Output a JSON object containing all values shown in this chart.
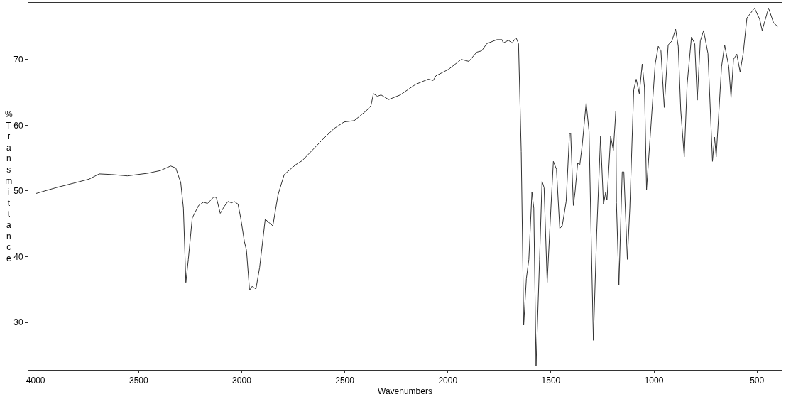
{
  "chart_data": {
    "type": "line",
    "xlabel": "Wavenumbers",
    "ylabel": "%Transmittance",
    "xlim": [
      4035,
      380
    ],
    "ylim": [
      22.8,
      78.6
    ],
    "xticks": [
      4000,
      3500,
      3000,
      2500,
      2000,
      1500,
      1000,
      500
    ],
    "yticks": [
      30,
      40,
      50,
      60,
      70
    ],
    "series": [
      {
        "color": "#333333",
        "x": [
          4000,
          3901,
          3802,
          3741,
          3691,
          3629,
          3555,
          3456,
          3395,
          3345,
          3320,
          3296,
          3283,
          3271,
          3259,
          3240,
          3209,
          3185,
          3166,
          3135,
          3123,
          3104,
          3086,
          3067,
          3049,
          3036,
          3018,
          3005,
          2987,
          2977,
          2962,
          2950,
          2931,
          2913,
          2886,
          2849,
          2824,
          2794,
          2738,
          2707,
          2676,
          2602,
          2552,
          2503,
          2454,
          2392,
          2373,
          2361,
          2342,
          2324,
          2287,
          2231,
          2157,
          2095,
          2071,
          2058,
          1996,
          1935,
          1898,
          1860,
          1836,
          1811,
          1762,
          1737,
          1731,
          1706,
          1688,
          1669,
          1657,
          1644,
          1632,
          1619,
          1607,
          1592,
          1583,
          1572,
          1555,
          1543,
          1533,
          1518,
          1500,
          1488,
          1473,
          1457,
          1445,
          1426,
          1410,
          1404,
          1391,
          1383,
          1370,
          1360,
          1348,
          1329,
          1315,
          1305,
          1294,
          1278,
          1259,
          1245,
          1234,
          1228,
          1210,
          1197,
          1185,
          1182,
          1170,
          1154,
          1146,
          1129,
          1117,
          1098,
          1086,
          1071,
          1057,
          1046,
          1036,
          1018,
          994,
          979,
          966,
          950,
          931,
          913,
          895,
          882,
          870,
          853,
          839,
          818,
          802,
          790,
          775,
          759,
          738,
          716,
          706,
          698,
          672,
          657,
          637,
          626,
          614,
          598,
          582,
          567,
          549,
          512,
          487,
          475,
          444,
          420,
          400
        ],
        "values": [
          49.6,
          50.5,
          51.3,
          51.8,
          52.6,
          52.5,
          52.3,
          52.7,
          53.1,
          53.8,
          53.5,
          51.3,
          47.4,
          36.1,
          39.6,
          45.9,
          47.8,
          48.3,
          48.1,
          49.1,
          49.0,
          46.6,
          47.6,
          48.4,
          48.2,
          48.4,
          48.0,
          45.9,
          42.3,
          41.0,
          34.9,
          35.5,
          35.1,
          38.4,
          45.7,
          44.7,
          49.4,
          52.5,
          54.0,
          54.6,
          55.6,
          58.0,
          59.5,
          60.5,
          60.7,
          62.3,
          63.0,
          64.8,
          64.4,
          64.6,
          63.9,
          64.6,
          66.2,
          67.0,
          66.8,
          67.5,
          68.5,
          70.0,
          69.7,
          71.1,
          71.3,
          72.4,
          73.0,
          73.0,
          72.5,
          72.9,
          72.5,
          73.3,
          72.4,
          56.0,
          29.6,
          36.7,
          39.6,
          49.8,
          47.4,
          23.4,
          39.6,
          51.5,
          50.5,
          36.1,
          47.4,
          54.5,
          53.3,
          44.3,
          44.7,
          48.4,
          58.6,
          58.8,
          47.8,
          49.8,
          54.3,
          53.9,
          57.0,
          63.4,
          59.1,
          43.5,
          27.3,
          43.5,
          58.3,
          48.0,
          49.8,
          48.6,
          58.3,
          56.2,
          62.1,
          48.2,
          35.7,
          52.9,
          52.9,
          39.6,
          47.4,
          65.4,
          67.0,
          64.8,
          69.3,
          65.8,
          50.2,
          58.4,
          69.3,
          72.0,
          71.3,
          62.7,
          72.2,
          72.8,
          74.6,
          72.0,
          62.3,
          55.2,
          66.2,
          73.4,
          72.4,
          63.8,
          72.8,
          74.4,
          70.9,
          54.5,
          58.2,
          55.2,
          68.9,
          72.2,
          68.9,
          64.2,
          70.0,
          70.8,
          68.1,
          70.9,
          76.3,
          77.8,
          76.1,
          74.4,
          77.8,
          75.6,
          75.0
        ]
      }
    ]
  }
}
